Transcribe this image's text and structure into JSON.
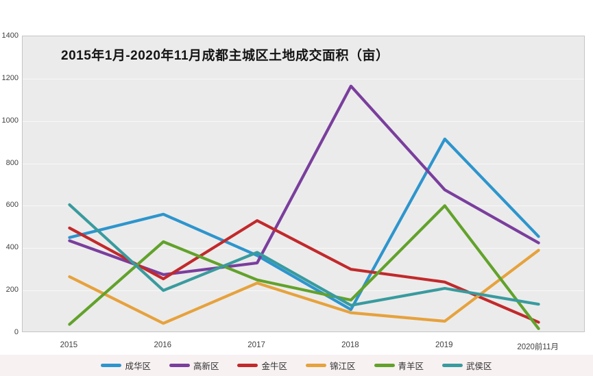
{
  "page": {
    "background": "#ffffff",
    "plot_background": "#ebebeb",
    "plot_border_color": "#c4c4c4",
    "legend_strip_background": "#f7f1f2"
  },
  "chart_data": {
    "type": "line",
    "title": "2015年1月-2020年11月成都主城区土地成交面积（亩）",
    "xlabel": "",
    "ylabel": "",
    "categories": [
      "2015",
      "2016",
      "2017",
      "2018",
      "2019",
      "2020前11月"
    ],
    "series": [
      {
        "id": "chenghua",
        "name": "成华区",
        "color": "#2d95cd",
        "values": [
          450,
          560,
          365,
          110,
          915,
          455
        ]
      },
      {
        "id": "gaoxin",
        "name": "高新区",
        "color": "#7a3e9d",
        "values": [
          435,
          275,
          330,
          1165,
          675,
          425
        ]
      },
      {
        "id": "jinniu",
        "name": "金牛区",
        "color": "#c2292b",
        "values": [
          495,
          255,
          530,
          300,
          240,
          50
        ]
      },
      {
        "id": "jinjiang",
        "name": "锦江区",
        "color": "#e6a23c",
        "values": [
          265,
          45,
          235,
          95,
          55,
          390
        ]
      },
      {
        "id": "qingyang",
        "name": "青羊区",
        "color": "#62a22b",
        "values": [
          40,
          430,
          250,
          155,
          600,
          20
        ]
      },
      {
        "id": "wuhou",
        "name": "武侯区",
        "color": "#399b9e",
        "values": [
          605,
          200,
          380,
          130,
          210,
          135
        ]
      }
    ],
    "ylim": [
      0,
      1400
    ],
    "yticks": [
      0,
      200,
      400,
      600,
      800,
      1000,
      1200,
      1400
    ],
    "grid": "horizontal-faint",
    "legend_position": "bottom",
    "line_width": 4.2
  }
}
